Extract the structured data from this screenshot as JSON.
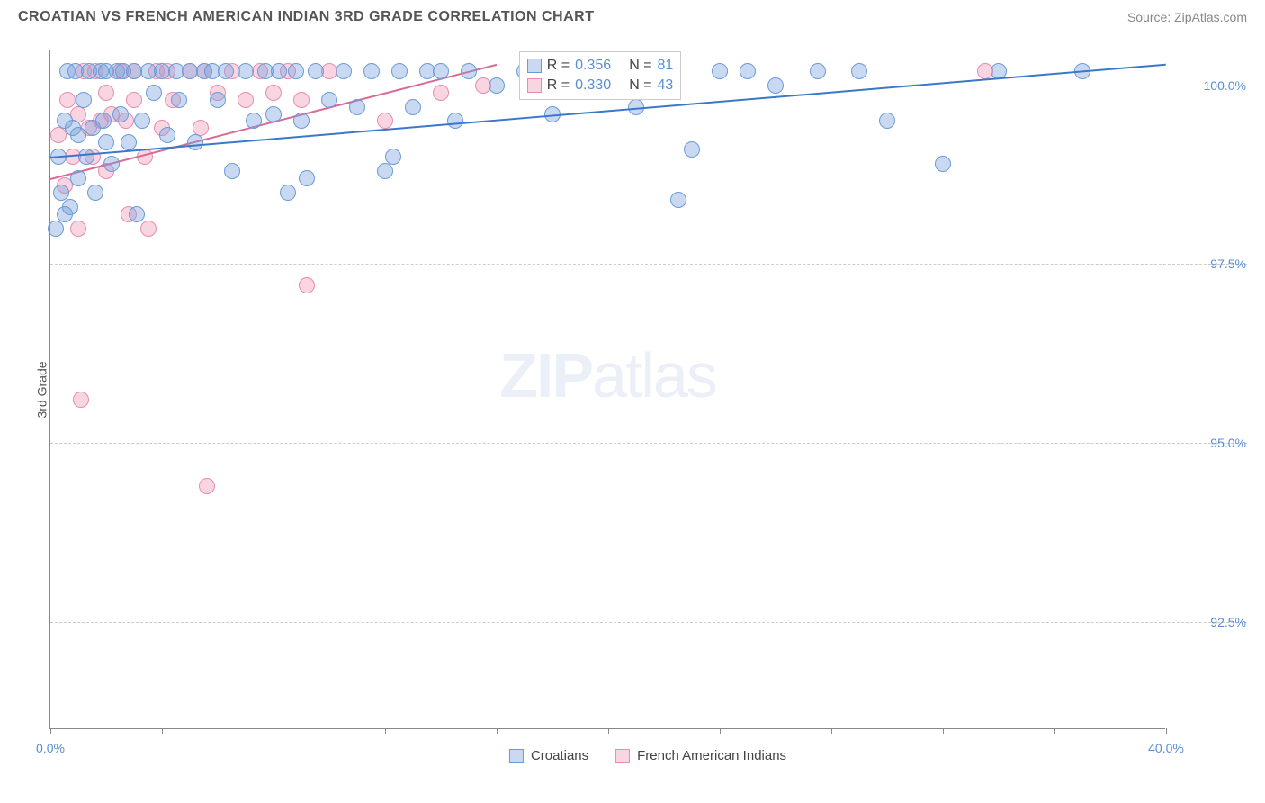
{
  "header": {
    "title": "CROATIAN VS FRENCH AMERICAN INDIAN 3RD GRADE CORRELATION CHART",
    "source": "Source: ZipAtlas.com"
  },
  "chart": {
    "type": "scatter",
    "ylabel": "3rd Grade",
    "xlim": [
      0,
      40
    ],
    "ylim": [
      91,
      100.5
    ],
    "xtick_positions": [
      0,
      4,
      8,
      12,
      16,
      20,
      24,
      28,
      32,
      36,
      40
    ],
    "xtick_labels_shown": {
      "0": "0.0%",
      "40": "40.0%"
    },
    "ytick_positions": [
      92.5,
      95.0,
      97.5,
      100.0
    ],
    "ytick_labels": [
      "92.5%",
      "95.0%",
      "97.5%",
      "100.0%"
    ],
    "grid_color": "#cccccc",
    "axis_color": "#888888",
    "background_color": "#ffffff",
    "label_color": "#5b8dd6",
    "watermark": {
      "text_bold": "ZIP",
      "text_light": "atlas"
    }
  },
  "series": {
    "croatians": {
      "label": "Croatians",
      "fill": "rgba(120,160,220,0.4)",
      "stroke": "#6a9bd8",
      "trend_color": "#3b78c9",
      "marker_radius": 9,
      "R": "0.356",
      "N": "81",
      "trend": {
        "x1": 0,
        "y1": 99.0,
        "x2": 40,
        "y2": 100.3
      },
      "points": [
        [
          0.2,
          98.0
        ],
        [
          0.3,
          99.0
        ],
        [
          0.4,
          98.5
        ],
        [
          0.5,
          99.5
        ],
        [
          0.5,
          98.2
        ],
        [
          0.6,
          100.2
        ],
        [
          0.7,
          98.3
        ],
        [
          0.8,
          99.4
        ],
        [
          0.9,
          100.2
        ],
        [
          1.0,
          99.3
        ],
        [
          1.0,
          98.7
        ],
        [
          1.2,
          99.8
        ],
        [
          1.3,
          99.0
        ],
        [
          1.4,
          100.2
        ],
        [
          1.5,
          99.4
        ],
        [
          1.6,
          98.5
        ],
        [
          1.8,
          100.2
        ],
        [
          1.9,
          99.5
        ],
        [
          2.0,
          99.2
        ],
        [
          2.0,
          100.2
        ],
        [
          2.2,
          98.9
        ],
        [
          2.4,
          100.2
        ],
        [
          2.5,
          99.6
        ],
        [
          2.6,
          100.2
        ],
        [
          2.8,
          99.2
        ],
        [
          3.0,
          100.2
        ],
        [
          3.1,
          98.2
        ],
        [
          3.3,
          99.5
        ],
        [
          3.5,
          100.2
        ],
        [
          3.7,
          99.9
        ],
        [
          4.0,
          100.2
        ],
        [
          4.2,
          99.3
        ],
        [
          4.5,
          100.2
        ],
        [
          4.6,
          99.8
        ],
        [
          5.0,
          100.2
        ],
        [
          5.2,
          99.2
        ],
        [
          5.5,
          100.2
        ],
        [
          5.8,
          100.2
        ],
        [
          6.0,
          99.8
        ],
        [
          6.3,
          100.2
        ],
        [
          6.5,
          98.8
        ],
        [
          7.0,
          100.2
        ],
        [
          7.3,
          99.5
        ],
        [
          7.7,
          100.2
        ],
        [
          8.0,
          99.6
        ],
        [
          8.2,
          100.2
        ],
        [
          8.5,
          98.5
        ],
        [
          8.8,
          100.2
        ],
        [
          9.0,
          99.5
        ],
        [
          9.2,
          98.7
        ],
        [
          9.5,
          100.2
        ],
        [
          10.0,
          99.8
        ],
        [
          10.5,
          100.2
        ],
        [
          11.0,
          99.7
        ],
        [
          11.5,
          100.2
        ],
        [
          12.0,
          98.8
        ],
        [
          12.3,
          99.0
        ],
        [
          12.5,
          100.2
        ],
        [
          13.0,
          99.7
        ],
        [
          13.5,
          100.2
        ],
        [
          14.0,
          100.2
        ],
        [
          14.5,
          99.5
        ],
        [
          15.0,
          100.2
        ],
        [
          16.0,
          100.0
        ],
        [
          17.0,
          100.2
        ],
        [
          18.0,
          99.6
        ],
        [
          19.0,
          100.2
        ],
        [
          20.0,
          100.2
        ],
        [
          21.0,
          99.7
        ],
        [
          22.0,
          100.2
        ],
        [
          22.5,
          98.4
        ],
        [
          23.0,
          99.1
        ],
        [
          24.0,
          100.2
        ],
        [
          25.0,
          100.2
        ],
        [
          26.0,
          100.0
        ],
        [
          27.5,
          100.2
        ],
        [
          29.0,
          100.2
        ],
        [
          30.0,
          99.5
        ],
        [
          32.0,
          98.9
        ],
        [
          34.0,
          100.2
        ],
        [
          37.0,
          100.2
        ]
      ]
    },
    "french_ai": {
      "label": "French American Indians",
      "fill": "rgba(240,150,180,0.4)",
      "stroke": "#e88bb0",
      "trend_color": "#d86a95",
      "marker_radius": 9,
      "R": "0.330",
      "N": "43",
      "trend": {
        "x1": 0,
        "y1": 98.7,
        "x2": 16,
        "y2": 100.3
      },
      "points": [
        [
          0.3,
          99.3
        ],
        [
          0.5,
          98.6
        ],
        [
          0.6,
          99.8
        ],
        [
          0.8,
          99.0
        ],
        [
          1.0,
          99.6
        ],
        [
          1.0,
          98.0
        ],
        [
          1.1,
          95.6
        ],
        [
          1.2,
          100.2
        ],
        [
          1.4,
          99.4
        ],
        [
          1.5,
          99.0
        ],
        [
          1.6,
          100.2
        ],
        [
          1.8,
          99.5
        ],
        [
          2.0,
          99.9
        ],
        [
          2.0,
          98.8
        ],
        [
          2.2,
          99.6
        ],
        [
          2.5,
          100.2
        ],
        [
          2.7,
          99.5
        ],
        [
          2.8,
          98.2
        ],
        [
          3.0,
          99.8
        ],
        [
          3.0,
          100.2
        ],
        [
          3.4,
          99.0
        ],
        [
          3.5,
          98.0
        ],
        [
          3.8,
          100.2
        ],
        [
          4.0,
          99.4
        ],
        [
          4.2,
          100.2
        ],
        [
          4.4,
          99.8
        ],
        [
          5.0,
          100.2
        ],
        [
          5.4,
          99.4
        ],
        [
          5.5,
          100.2
        ],
        [
          5.6,
          94.4
        ],
        [
          6.0,
          99.9
        ],
        [
          6.5,
          100.2
        ],
        [
          7.0,
          99.8
        ],
        [
          7.5,
          100.2
        ],
        [
          8.0,
          99.9
        ],
        [
          8.5,
          100.2
        ],
        [
          9.0,
          99.8
        ],
        [
          9.2,
          97.2
        ],
        [
          10.0,
          100.2
        ],
        [
          12.0,
          99.5
        ],
        [
          14.0,
          99.9
        ],
        [
          15.5,
          100.0
        ],
        [
          33.5,
          100.2
        ]
      ]
    }
  },
  "stats_box": {
    "rows": [
      {
        "series": "croatians",
        "R_label": "R = ",
        "N_label": "N = "
      },
      {
        "series": "french_ai",
        "R_label": "R = ",
        "N_label": "N = "
      }
    ]
  },
  "legend_order": [
    "croatians",
    "french_ai"
  ]
}
